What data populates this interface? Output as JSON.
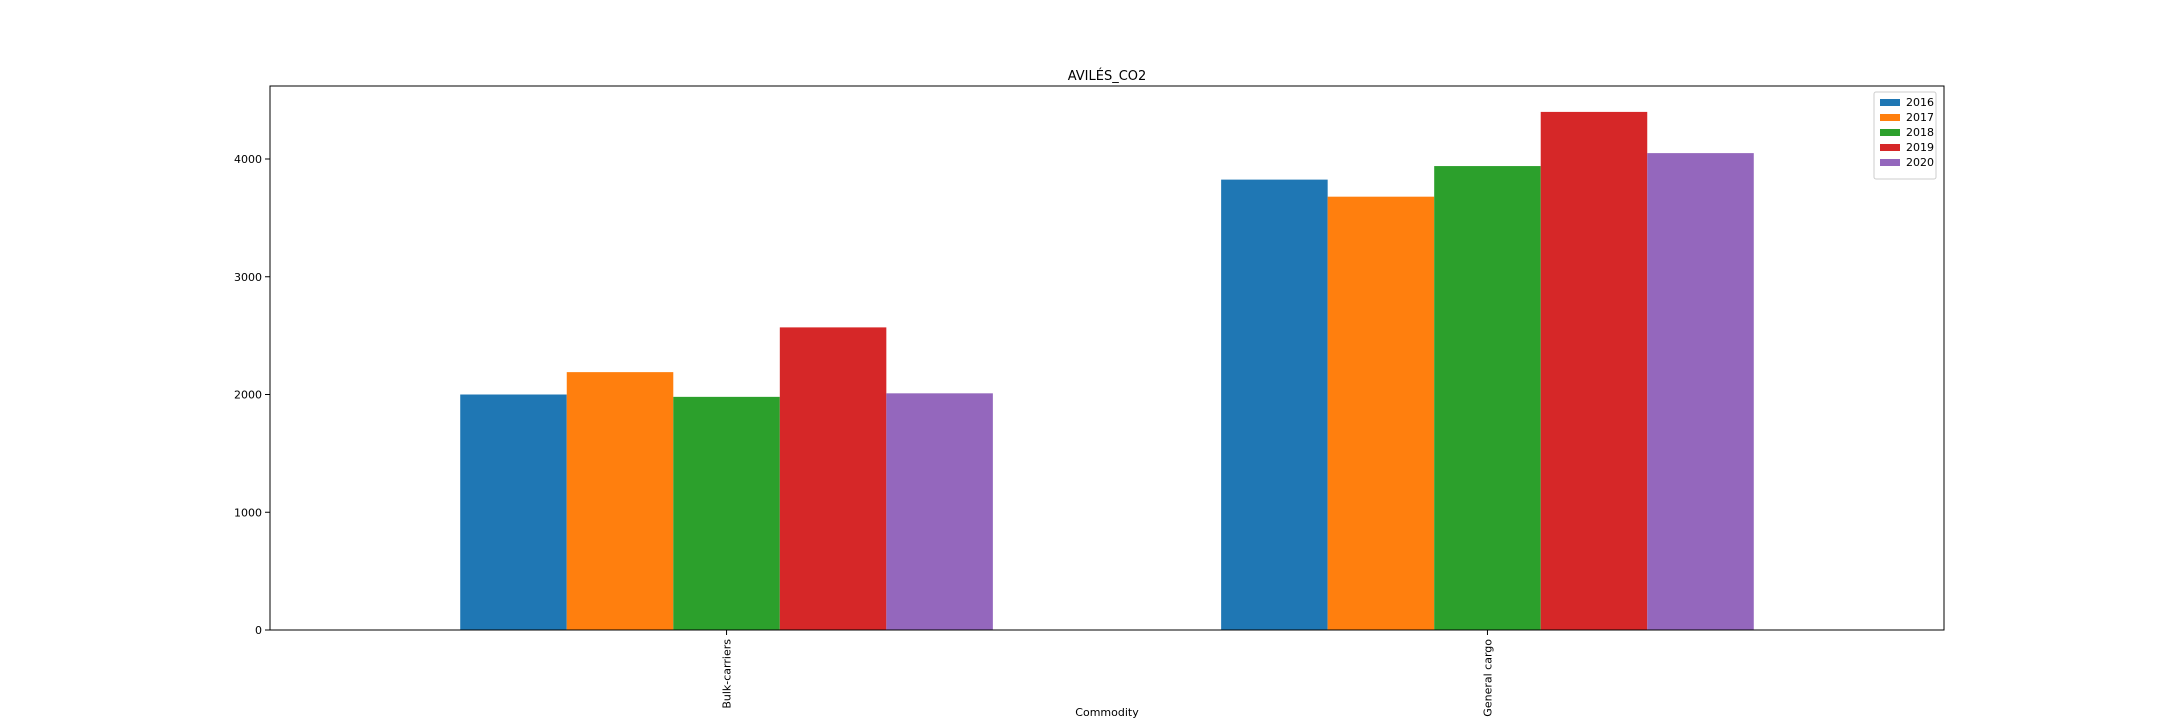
{
  "chart_data": {
    "type": "bar",
    "title": "AVILÉS_CO2",
    "x_label": "Commodity",
    "categories": [
      "Bulk-carriers",
      "General cargo"
    ],
    "series": [
      {
        "name": "2016",
        "color": "#1f77b4",
        "values": [
          2000,
          3825
        ]
      },
      {
        "name": "2017",
        "color": "#ff7f0e",
        "values": [
          2190,
          3680
        ]
      },
      {
        "name": "2018",
        "color": "#2ca02c",
        "values": [
          1980,
          3940
        ]
      },
      {
        "name": "2019",
        "color": "#d62728",
        "values": [
          2570,
          4400
        ]
      },
      {
        "name": "2020",
        "color": "#9467bd",
        "values": [
          2010,
          4050
        ]
      }
    ],
    "ylim": [
      0,
      4620
    ],
    "yticks": [
      0,
      1000,
      2000,
      3000,
      4000
    ],
    "grid": false,
    "legend": "upper right"
  }
}
